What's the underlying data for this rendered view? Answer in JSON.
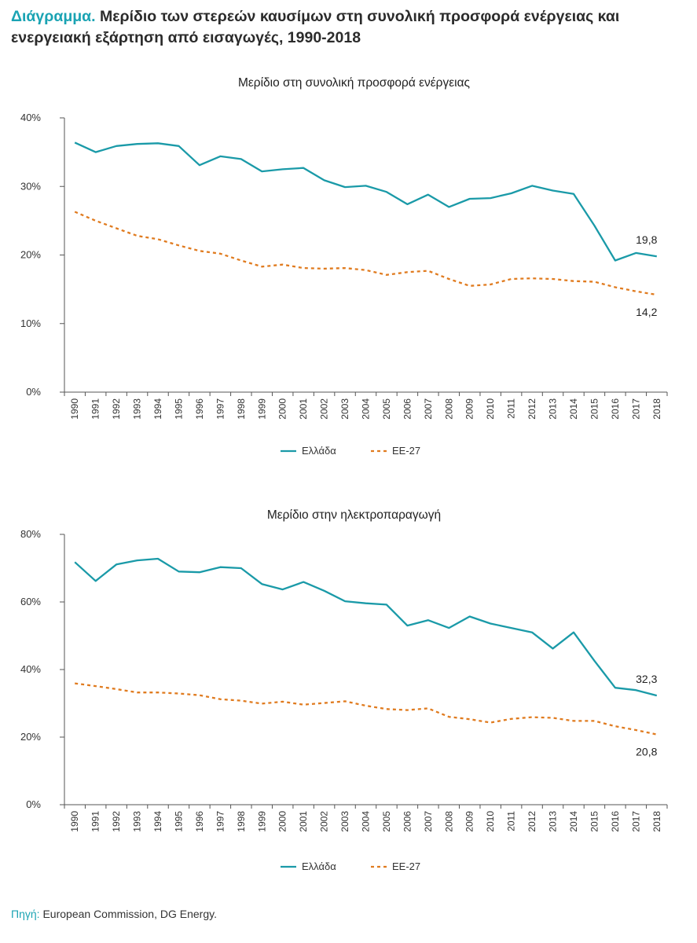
{
  "header": {
    "label": "Διάγραμμα.",
    "text": "Μερίδιο των στερεών καυσίμων στη συνολική προσφορά ενέργειας και ενεργειακή εξάρτηση από εισαγωγές, 1990-2018"
  },
  "colors": {
    "greece": "#1a9aa8",
    "eu27": "#e07b1f",
    "accent": "#1aa3b3"
  },
  "chart_data": [
    {
      "type": "line",
      "title": "Μερίδιο στη συνολική προσφορά ενέργειας",
      "categories": [
        "1990",
        "1991",
        "1992",
        "1993",
        "1994",
        "1995",
        "1996",
        "1997",
        "1998",
        "1999",
        "2000",
        "2001",
        "2002",
        "2003",
        "2004",
        "2005",
        "2006",
        "2007",
        "2008",
        "2009",
        "2010",
        "2011",
        "2012",
        "2013",
        "2014",
        "2015",
        "2016",
        "2017",
        "2018"
      ],
      "yticks": [
        "0%",
        "10%",
        "20%",
        "30%",
        "40%"
      ],
      "ylim": [
        0,
        40
      ],
      "series": [
        {
          "name": "Ελλάδα",
          "style": "solid",
          "values": [
            36.4,
            35.0,
            35.9,
            36.2,
            36.3,
            35.9,
            33.1,
            34.4,
            34.0,
            32.2,
            32.5,
            32.7,
            30.9,
            29.9,
            30.1,
            29.2,
            27.4,
            28.8,
            27.0,
            28.2,
            28.3,
            29.0,
            30.1,
            29.4,
            28.9,
            24.3,
            19.2,
            20.3,
            19.8
          ]
        },
        {
          "name": "ΕΕ-27",
          "style": "dashed",
          "values": [
            26.3,
            25.0,
            23.9,
            22.8,
            22.3,
            21.4,
            20.6,
            20.2,
            19.2,
            18.3,
            18.6,
            18.1,
            18.0,
            18.1,
            17.8,
            17.1,
            17.5,
            17.7,
            16.5,
            15.5,
            15.7,
            16.5,
            16.6,
            16.5,
            16.2,
            16.1,
            15.3,
            14.7,
            14.2
          ]
        }
      ],
      "annotations": {
        "greece_last": "19,8",
        "eu_last": "14,2"
      }
    },
    {
      "type": "line",
      "title": "Μερίδιο στην ηλεκτροπαραγωγή",
      "categories": [
        "1990",
        "1991",
        "1992",
        "1993",
        "1994",
        "1995",
        "1996",
        "1997",
        "1998",
        "1999",
        "2000",
        "2001",
        "2002",
        "2003",
        "2004",
        "2005",
        "2006",
        "2007",
        "2008",
        "2009",
        "2010",
        "2011",
        "2012",
        "2013",
        "2014",
        "2015",
        "2016",
        "2017",
        "2018"
      ],
      "yticks": [
        "0%",
        "20%",
        "40%",
        "60%",
        "80%"
      ],
      "ylim": [
        0,
        80
      ],
      "series": [
        {
          "name": "Ελλάδα",
          "style": "solid",
          "values": [
            71.8,
            66.2,
            71.1,
            72.3,
            72.8,
            69.0,
            68.8,
            70.3,
            70.0,
            65.3,
            63.7,
            65.9,
            63.3,
            60.2,
            59.6,
            59.2,
            53.0,
            54.6,
            52.3,
            55.7,
            53.6,
            52.3,
            51.0,
            46.2,
            51.0,
            42.6,
            34.6,
            33.9,
            32.3
          ]
        },
        {
          "name": "ΕΕ-27",
          "style": "dashed",
          "values": [
            35.9,
            35.1,
            34.2,
            33.2,
            33.2,
            32.9,
            32.4,
            31.2,
            30.8,
            29.9,
            30.5,
            29.6,
            30.1,
            30.6,
            29.3,
            28.3,
            28.0,
            28.5,
            26.0,
            25.3,
            24.3,
            25.4,
            25.9,
            25.7,
            24.8,
            24.8,
            23.2,
            22.1,
            20.8
          ]
        }
      ],
      "annotations": {
        "greece_last": "32,3",
        "eu_last": "20,8"
      }
    }
  ],
  "source": {
    "label": "Πηγή:",
    "text": "European Commission, DG Energy."
  }
}
